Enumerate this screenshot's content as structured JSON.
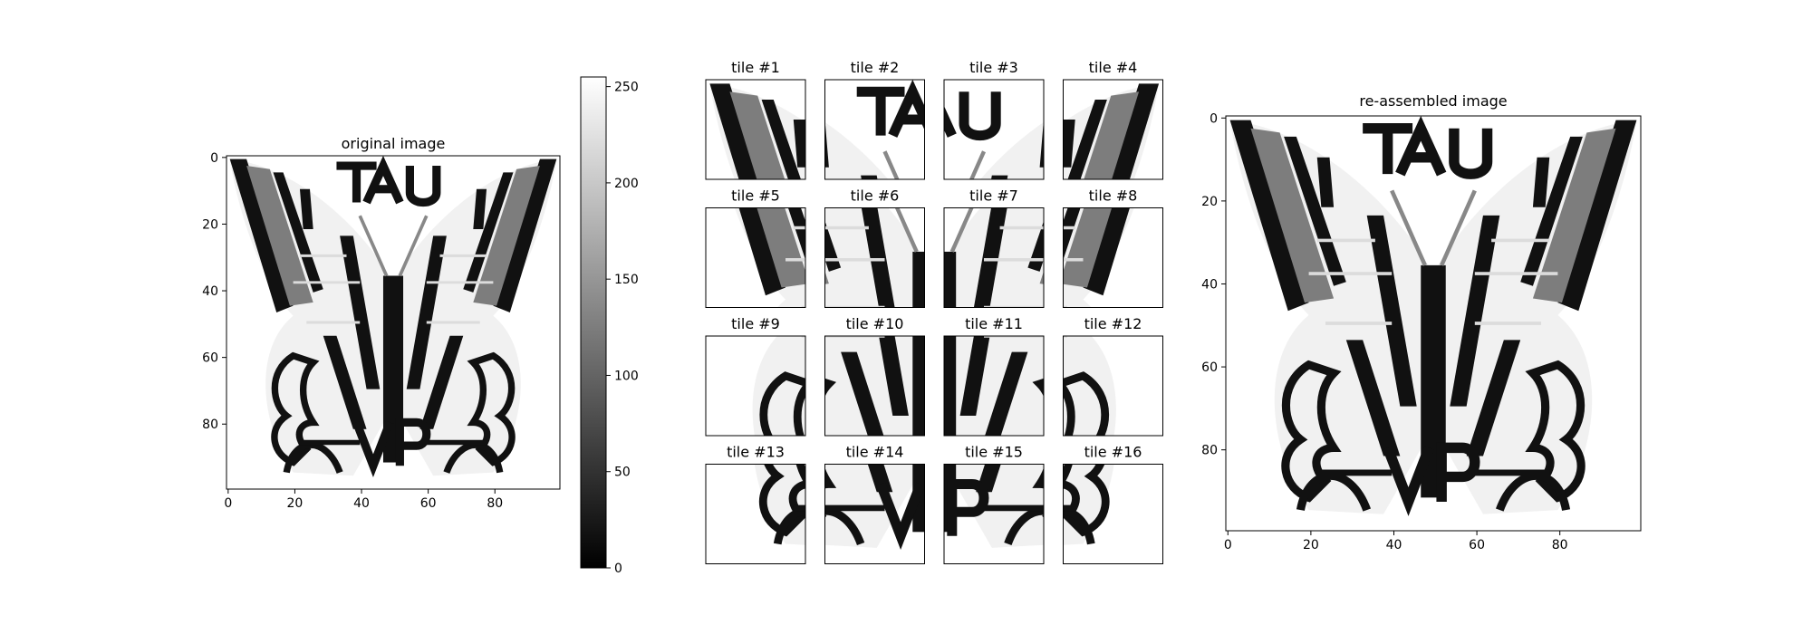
{
  "chart_data": [
    {
      "type": "heatmap",
      "title": "original image",
      "xlim": [
        0,
        100
      ],
      "ylim": [
        100,
        0
      ],
      "xticks": [
        0,
        20,
        40,
        60,
        80
      ],
      "yticks": [
        0,
        20,
        40,
        60,
        80
      ],
      "colormap": "gray"
    },
    {
      "type": "colorbar",
      "range": [
        0,
        255
      ],
      "ticks": [
        0,
        50,
        100,
        150,
        200,
        250
      ]
    },
    {
      "type": "heatmap",
      "tiles": [
        "tile #1",
        "tile #2",
        "tile #3",
        "tile #4",
        "tile #5",
        "tile #6",
        "tile #7",
        "tile #8",
        "tile #9",
        "tile #10",
        "tile #11",
        "tile #12",
        "tile #13",
        "tile #14",
        "tile #15",
        "tile #16"
      ],
      "grid": [
        4,
        4
      ],
      "tile_size": [
        25,
        25
      ]
    },
    {
      "type": "heatmap",
      "title": "re-assembled image",
      "xlim": [
        0,
        100
      ],
      "ylim": [
        100,
        0
      ],
      "xticks": [
        0,
        20,
        40,
        60,
        80
      ],
      "yticks": [
        0,
        20,
        40,
        60,
        80
      ],
      "colormap": "gray"
    }
  ]
}
